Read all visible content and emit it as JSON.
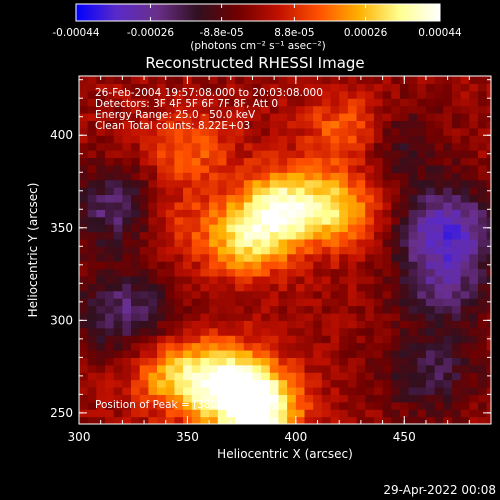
{
  "chart_data": {
    "type": "heatmap",
    "title": "Reconstructed RHESSI Image",
    "xlabel": "Heliocentric X (arcsec)",
    "ylabel": "Heliocentric Y (arcsec)",
    "xlim": [
      300,
      490
    ],
    "ylim": [
      244,
      432
    ],
    "x_ticks": [
      "300",
      "350",
      "400",
      "450"
    ],
    "y_ticks": [
      "250",
      "300",
      "350",
      "400"
    ],
    "colorbar": {
      "range": [
        -0.00044,
        0.00044
      ],
      "tick_labels": [
        "-0.00044",
        "-0.00026",
        "-8.8e-05",
        "8.8e-05",
        "0.00026",
        "0.00044"
      ],
      "unit_label": "(photons cm⁻² s⁻¹ asec⁻²)",
      "colors": [
        "#0000ff",
        "#5a2ac8",
        "#6a2f8a",
        "#301020",
        "#700000",
        "#c01000",
        "#ff5000",
        "#ffb000",
        "#ffff90",
        "#ffffff"
      ]
    },
    "annotations": [
      "26-Feb-2004 19:57:08.000 to 20:03:08.000",
      "Detectors: 3F 4F 5F 6F 7F 8F, Att 0",
      "Energy Range: 25.0 - 50.0 keV",
      "Clean     Total counts: 8.22E+03"
    ],
    "peak_label": "Position of Peak = [380, 255]",
    "peaks": [
      {
        "x": 382,
        "y": 252,
        "v": 0.00044
      },
      {
        "x": 370,
        "y": 268,
        "v": 0.00032
      },
      {
        "x": 345,
        "y": 270,
        "v": 0.00026
      },
      {
        "x": 393,
        "y": 362,
        "v": 0.00034
      },
      {
        "x": 377,
        "y": 343,
        "v": 0.00028
      },
      {
        "x": 420,
        "y": 360,
        "v": 0.00026
      },
      {
        "x": 425,
        "y": 402,
        "v": 0.0002
      },
      {
        "x": 350,
        "y": 392,
        "v": 0.00016
      },
      {
        "x": 342,
        "y": 355,
        "v": 0.00012
      },
      {
        "x": 318,
        "y": 350,
        "v": 8e-05
      }
    ],
    "troughs": [
      {
        "x": 318,
        "y": 358,
        "v": -0.0003
      },
      {
        "x": 470,
        "y": 350,
        "v": -0.00032
      },
      {
        "x": 468,
        "y": 318,
        "v": -0.0002
      },
      {
        "x": 320,
        "y": 305,
        "v": -0.00022
      },
      {
        "x": 462,
        "y": 272,
        "v": -0.00018
      },
      {
        "x": 445,
        "y": 395,
        "v": -0.00016
      }
    ]
  },
  "footer": {
    "timestamp": "29-Apr-2022 00:08"
  }
}
